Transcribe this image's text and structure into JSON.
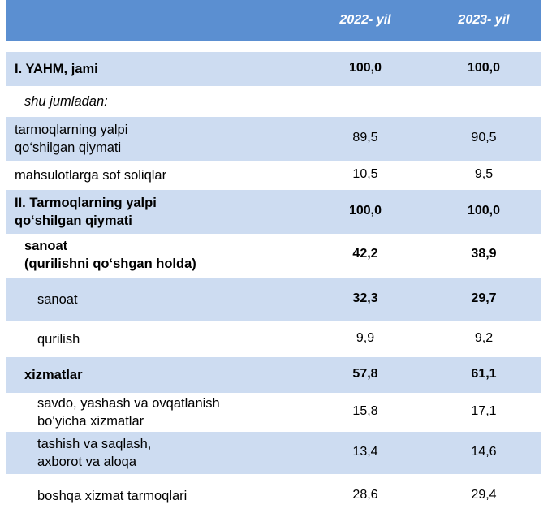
{
  "header": {
    "col1": "2022- yil",
    "col2": "2023- yil"
  },
  "rows": [
    {
      "label": "I. YAHM, jami",
      "v1": "100,0",
      "v2": "100,0"
    },
    {
      "label": "shu jumladan:"
    },
    {
      "label_lines": [
        "tarmoqlarning yalpi",
        "qo‘shilgan qiymati"
      ],
      "v1": "89,5",
      "v2": "90,5"
    },
    {
      "label": "mahsulotlarga sof soliqlar",
      "v1": "10,5",
      "v2": "9,5"
    },
    {
      "label_lines": [
        "II. Tarmoqlarning yalpi",
        "qo‘shilgan qiymati"
      ],
      "v1": "100,0",
      "v2": "100,0"
    },
    {
      "label_lines": [
        "sanoat",
        "(qurilishni qo‘shgan holda)"
      ],
      "v1": "42,2",
      "v2": "38,9"
    },
    {
      "label": "sanoat",
      "v1": "32,3",
      "v2": "29,7"
    },
    {
      "label": "qurilish",
      "v1": "9,9",
      "v2": "9,2"
    },
    {
      "label": "xizmatlar",
      "v1": "57,8",
      "v2": "61,1"
    },
    {
      "label_lines": [
        "savdo, yashash va ovqatlanish",
        "bo‘yicha xizmatlar"
      ],
      "v1": "15,8",
      "v2": "17,1"
    },
    {
      "label_lines": [
        "tashish va saqlash,",
        "axborot va aloqa"
      ],
      "v1": "13,4",
      "v2": "14,6"
    },
    {
      "label": "boshqa xizmat tarmoqlari",
      "v1": "28,6",
      "v2": "29,4"
    }
  ]
}
